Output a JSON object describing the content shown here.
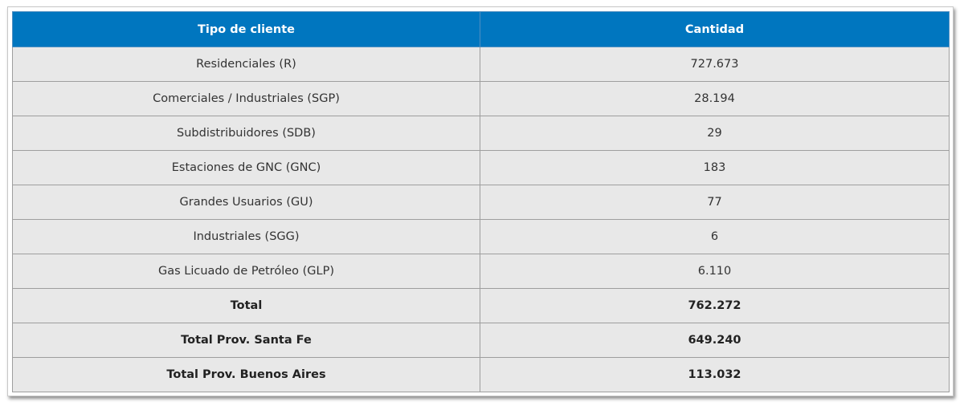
{
  "table": {
    "headers": [
      "Tipo de cliente",
      "Cantidad"
    ],
    "rows": [
      {
        "tipo": "Residenciales (R)",
        "cantidad": "727.673"
      },
      {
        "tipo": "Comerciales / Industriales (SGP)",
        "cantidad": "28.194"
      },
      {
        "tipo": "Subdistribuidores (SDB)",
        "cantidad": "29"
      },
      {
        "tipo": "Estaciones de GNC (GNC)",
        "cantidad": "183"
      },
      {
        "tipo": "Grandes Usuarios (GU)",
        "cantidad": "77"
      },
      {
        "tipo": "Industriales (SGG)",
        "cantidad": "6"
      },
      {
        "tipo": "Gas Licuado de Petróleo (GLP)",
        "cantidad": "6.110"
      }
    ],
    "totals": [
      {
        "tipo": "Total",
        "cantidad": "762.272"
      },
      {
        "tipo": "Total Prov. Santa Fe",
        "cantidad": "649.240"
      },
      {
        "tipo": "Total Prov. Buenos Aires",
        "cantidad": "113.032"
      }
    ]
  },
  "colors": {
    "header_background": "#0076bf",
    "header_text": "#ffffff",
    "row_background": "#e8e8e8",
    "border": "#9e9e9e"
  }
}
